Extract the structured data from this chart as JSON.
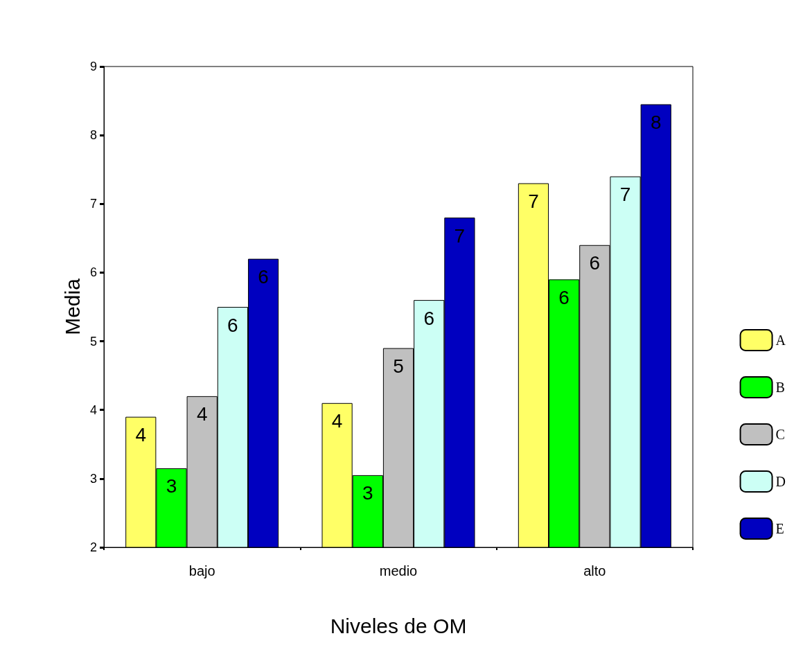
{
  "chart_data": {
    "type": "bar",
    "xlabel": "Niveles de OM",
    "ylabel": "Media",
    "categories": [
      "bajo",
      "medio",
      "alto"
    ],
    "series": [
      {
        "name": "A",
        "color": "#ffff66",
        "values": [
          3.9,
          4.1,
          7.3
        ],
        "value_labels": [
          "4",
          "4",
          "7"
        ]
      },
      {
        "name": "B",
        "color": "#00ff00",
        "values": [
          3.15,
          3.05,
          5.9
        ],
        "value_labels": [
          "3",
          "3",
          "6"
        ]
      },
      {
        "name": "C",
        "color": "#c0c0c0",
        "values": [
          4.2,
          4.9,
          6.4
        ],
        "value_labels": [
          "4",
          "5",
          "6"
        ]
      },
      {
        "name": "D",
        "color": "#ccfff5",
        "values": [
          5.5,
          5.6,
          7.4
        ],
        "value_labels": [
          "6",
          "6",
          "7"
        ]
      },
      {
        "name": "E",
        "color": "#0000c0",
        "values": [
          6.2,
          6.8,
          8.45
        ],
        "value_labels": [
          "6",
          "7",
          "8"
        ]
      }
    ],
    "ylim": [
      2,
      9
    ],
    "yticks": [
      2,
      3,
      4,
      5,
      6,
      7,
      8,
      9
    ],
    "grid": false,
    "legend": "right"
  }
}
